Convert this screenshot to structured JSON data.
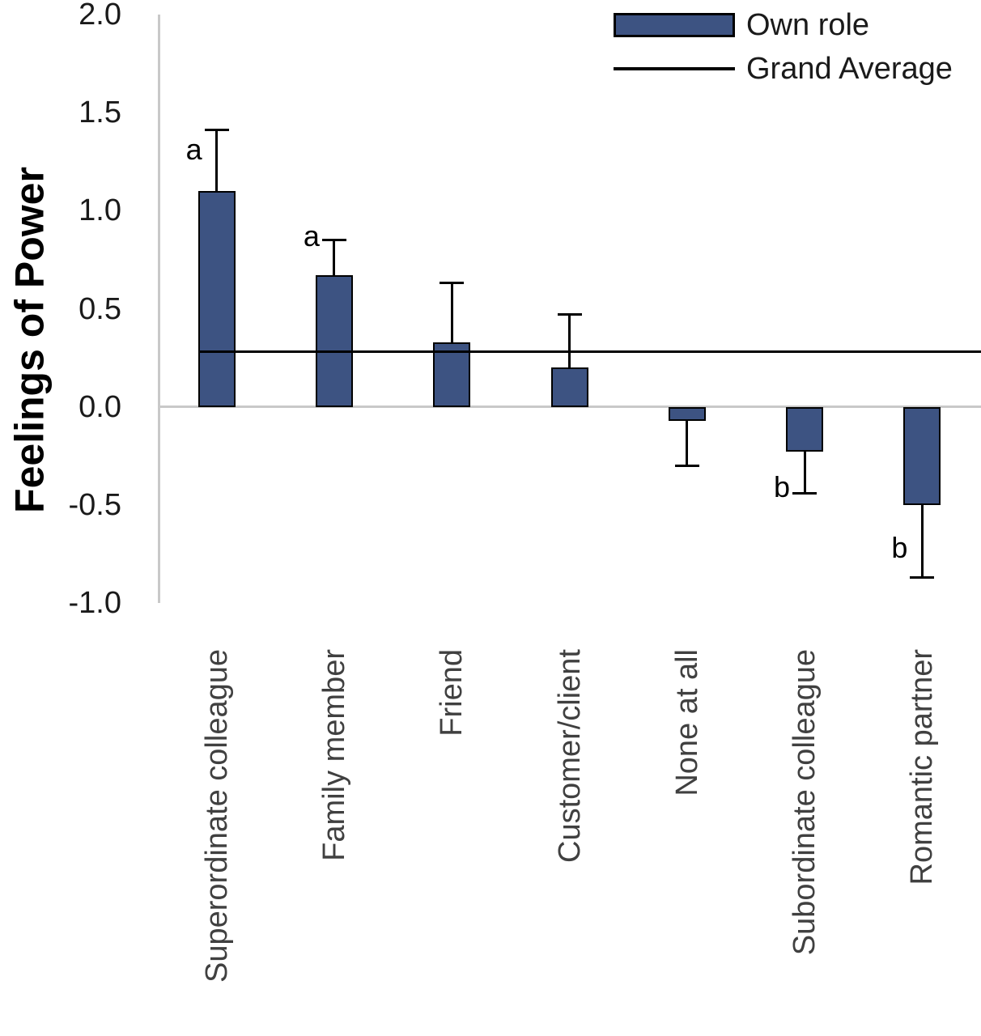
{
  "figure": {
    "ylabel": "Feelings of Power"
  },
  "chart_data": {
    "type": "bar",
    "title": "",
    "xlabel": "",
    "ylabel": "Feelings of Power",
    "series_name": "Own role",
    "categories": [
      "Superordinate colleague",
      "Family member",
      "Friend",
      "Customer/client",
      "None at all",
      "Subordinate colleague",
      "Romantic partner"
    ],
    "values": [
      1.1,
      0.67,
      0.33,
      0.2,
      -0.07,
      -0.23,
      -0.5
    ],
    "error_whisker_to": [
      1.41,
      0.85,
      0.63,
      0.47,
      -0.3,
      -0.44,
      -0.87
    ],
    "sig_labels": [
      "a",
      "a",
      "",
      "",
      "",
      "b",
      "b"
    ],
    "sig_label_y": [
      1.31,
      0.87,
      null,
      null,
      null,
      -0.41,
      -0.72
    ],
    "grand_average": 0.28,
    "ylim": [
      -1.0,
      2.0
    ],
    "yticks": [
      2.0,
      1.5,
      1.0,
      0.5,
      0.0,
      -0.5,
      -1.0
    ],
    "ytick_labels": [
      "2.0",
      "1.5",
      "1.0",
      "0.5",
      "0.0",
      "-0.5",
      "-1.0"
    ],
    "grid": false,
    "legend_position": "top-right",
    "legend": [
      {
        "swatch": "bar",
        "label": "Own role"
      },
      {
        "swatch": "line",
        "label": "Grand Average"
      }
    ],
    "bar_color": "#3d5382",
    "axis_color": "#c9c9c9",
    "error_bar_color": "#000000",
    "grand_average_color": "#000000",
    "category_label_color": "#404040"
  }
}
